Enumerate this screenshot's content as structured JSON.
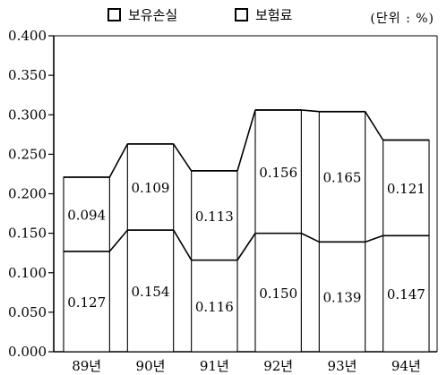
{
  "legend": {
    "loss": "보유손실",
    "premium": "보험료"
  },
  "unit": "(단위 : %)",
  "colors": {
    "line": "#000000",
    "background": "#ffffff"
  },
  "chart_data": {
    "type": "bar",
    "stacked": true,
    "categories": [
      "89년",
      "90년",
      "91년",
      "92년",
      "93년",
      "94년"
    ],
    "series": [
      {
        "name": "보험료",
        "values": [
          0.127,
          0.154,
          0.116,
          0.15,
          0.139,
          0.147
        ]
      },
      {
        "name": "보유손실",
        "values": [
          0.094,
          0.109,
          0.113,
          0.156,
          0.165,
          0.121
        ]
      }
    ],
    "value_labels": [
      [
        "0.127",
        "0.154",
        "0.116",
        "0.150",
        "0.139",
        "0.147"
      ],
      [
        "0.094",
        "0.109",
        "0.113",
        "0.156",
        "0.165",
        "0.121"
      ]
    ],
    "ylim": [
      0,
      0.4
    ],
    "yticks": [
      "0.000",
      "0.050",
      "0.100",
      "0.150",
      "0.200",
      "0.250",
      "0.300",
      "0.350",
      "0.400"
    ],
    "grid": false,
    "legend_position": "top"
  }
}
